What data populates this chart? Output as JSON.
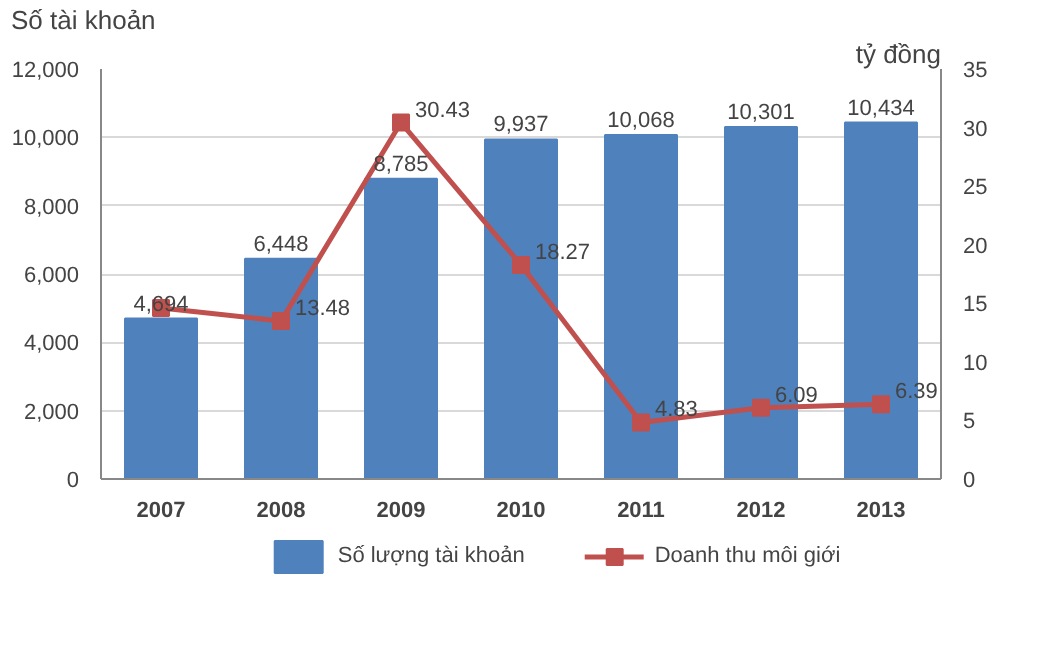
{
  "chart_data": {
    "type": "bar",
    "categories": [
      "2007",
      "2008",
      "2009",
      "2010",
      "2011",
      "2012",
      "2013"
    ],
    "ylabel": "Số tài khoản",
    "y2label": "tỷ đồng",
    "ylim": [
      0,
      12000
    ],
    "yticks": [
      0,
      {
        "value": 2000,
        "label": "2,000"
      },
      {
        "value": 4000,
        "label": "4,000"
      },
      {
        "value": 6000,
        "label": "6,000"
      },
      {
        "value": 8000,
        "label": "8,000"
      },
      {
        "value": 10000,
        "label": "10,000"
      },
      {
        "value": 12000,
        "label": "12,000"
      }
    ],
    "y2lim": [
      0,
      35
    ],
    "y2ticks": [
      0,
      5,
      10,
      15,
      20,
      25,
      30,
      35
    ],
    "series": [
      {
        "name": "Số lượng tài khoản",
        "color": "#4f81bd",
        "values": [
          4694,
          6448,
          8785,
          9937,
          10068,
          10301,
          10434
        ],
        "value_labels": [
          "4,694",
          "6,448",
          "8,785",
          "9,937",
          "10,068",
          "10,301",
          "10,434"
        ]
      },
      {
        "name": "Doanh thu môi giới",
        "type": "line",
        "axis": "y2",
        "color": "#c0504d",
        "marker": "square",
        "values": [
          14.6,
          13.48,
          30.43,
          18.27,
          4.83,
          6.09,
          6.39
        ],
        "value_labels": [
          null,
          "13.48",
          "30.43",
          "18.27",
          "4.83",
          "6.09",
          "6.39"
        ]
      }
    ],
    "grid": "y",
    "legend": "bottom"
  }
}
